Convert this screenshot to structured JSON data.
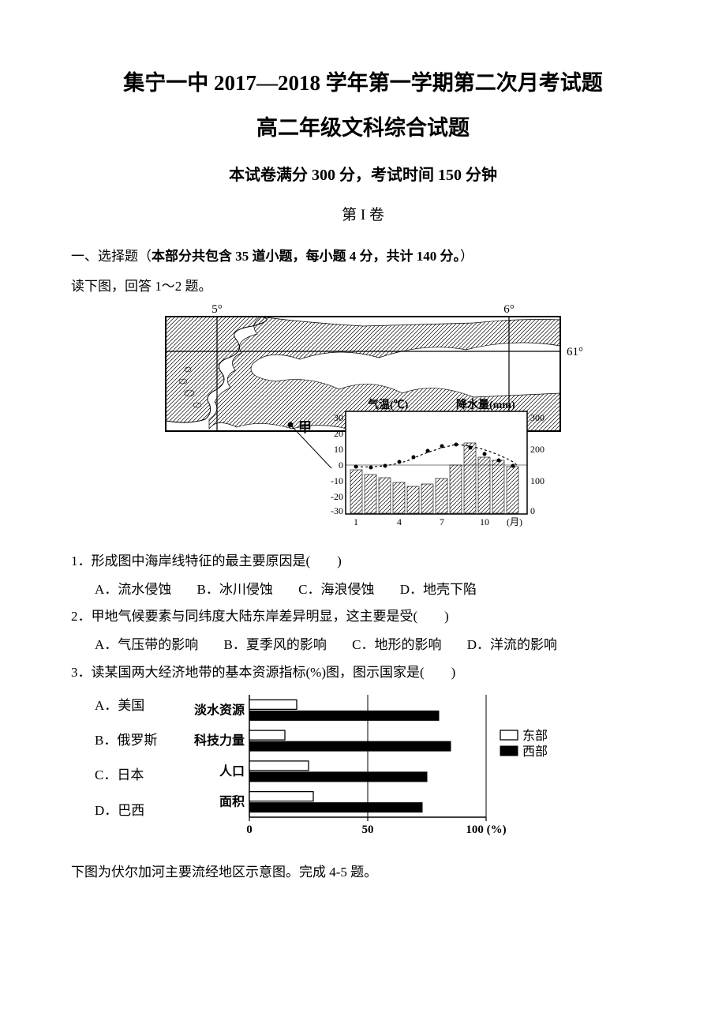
{
  "title": {
    "main": "集宁一中 2017—2018 学年第一学期第二次月考试题",
    "sub": "高二年级文科综合试题"
  },
  "exam_info": "本试卷满分 300 分，考试时间 150 分钟",
  "volume": "第 I 卷",
  "section_intro": {
    "prefix": "一、选择题（",
    "bold": "本部分共包含 35 道小题，每小题 4 分，共计 140 分。",
    "suffix": "）"
  },
  "instruction_1": "读下图，回答 1～2 题。",
  "map_labels": {
    "lon_5": "5°",
    "lon_6": "6°",
    "lat_61": "61°",
    "jia": "甲",
    "temp_label": "气温(℃)",
    "precip_label": "降水量(mm)",
    "month_label": "(月)",
    "temp_ticks": [
      "30",
      "20",
      "10",
      "0",
      "-10",
      "-20",
      "-30"
    ],
    "precip_ticks": [
      "300",
      "200",
      "100",
      "0"
    ],
    "month_ticks": [
      "1",
      "4",
      "7",
      "10"
    ]
  },
  "q1": {
    "text": "1．形成图中海岸线特征的最主要原因是(　　)",
    "optA": "A．流水侵蚀",
    "optB": "B．冰川侵蚀",
    "optC": "C．海浪侵蚀",
    "optD": "D．地壳下陷"
  },
  "q2": {
    "text": "2．甲地气候要素与同纬度大陆东岸差异明显，这主要是受(　　)",
    "optA": "A．气压带的影响",
    "optB": "B．夏季风的影响",
    "optC": "C．地形的影响",
    "optD": "D．洋流的影响"
  },
  "q3": {
    "text": "3．读某国两大经济地带的基本资源指标(%)图，图示国家是(　　)",
    "optA": "A．美国",
    "optB": "B．俄罗斯",
    "optC": "C．日本",
    "optD": "D．巴西"
  },
  "bar_chart": {
    "categories": [
      "淡水资源",
      "科技力量",
      "人口",
      "面积"
    ],
    "east_values": [
      20,
      15,
      25,
      27
    ],
    "west_values": [
      80,
      85,
      75,
      73
    ],
    "x_ticks": [
      "0",
      "50",
      "100 (%)"
    ],
    "legend_east": "东部",
    "legend_west": "西部",
    "bar_fill_east": "#ffffff",
    "bar_fill_west": "#000000",
    "axis_color": "#000000",
    "text_color": "#000000"
  },
  "instruction_2": "下图为伏尔加河主要流经地区示意图。完成 4-5 题。"
}
